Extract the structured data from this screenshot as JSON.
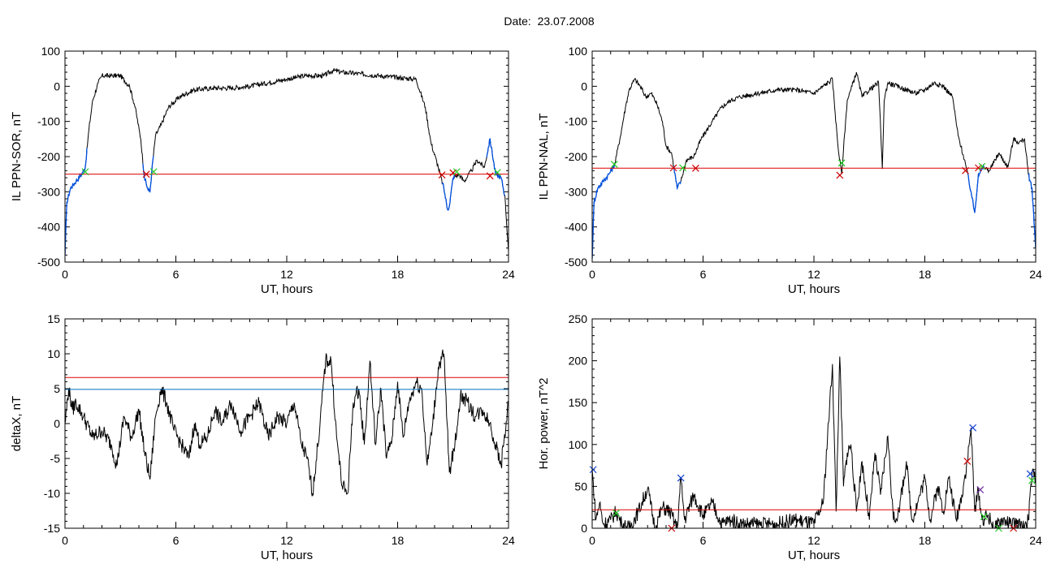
{
  "title": "Date:  23.07.2008",
  "colors": {
    "signal": "#000000",
    "threshold_red": "#dd0000",
    "threshold_blue": "#0070c0",
    "segment_blue": "#0050e0",
    "marker_green": "#22cc22",
    "marker_red": "#cc0000",
    "marker_blue": "#1040d0"
  },
  "chart_data": [
    {
      "id": "il-ppn-sor",
      "type": "line",
      "xlabel": "UT, hours",
      "ylabel": "IL PPN-SOR, nT",
      "xlim": [
        0,
        24
      ],
      "ylim": [
        -500,
        100
      ],
      "xticks": [
        0,
        6,
        12,
        18,
        24
      ],
      "yticks": [
        -500,
        -400,
        -300,
        -200,
        -100,
        0,
        100
      ],
      "threshold": {
        "value": -250,
        "color": "red"
      },
      "series": [
        {
          "values_hours": [
            0,
            0.1,
            0.3,
            0.6,
            0.9,
            1.1,
            1.3,
            1.5,
            1.8,
            2.0,
            2.5,
            3.0,
            3.5,
            3.8,
            4.1,
            4.3,
            4.5,
            4.6,
            4.7,
            4.9,
            5.2,
            5.6,
            6.2,
            7,
            8,
            9,
            10,
            11,
            12,
            13,
            14,
            14.5,
            15,
            16,
            17,
            18,
            19,
            19.5,
            19.8,
            20.2,
            20.5,
            20.7,
            20.8,
            21.0,
            21.3,
            21.6,
            22.0,
            22.3,
            22.7,
            23.0,
            23.3,
            23.6,
            23.8,
            24
          ],
          "values_nT": [
            -480,
            -330,
            -290,
            -270,
            -250,
            -230,
            -120,
            -40,
            10,
            30,
            30,
            30,
            0,
            -60,
            -150,
            -260,
            -295,
            -300,
            -240,
            -140,
            -110,
            -60,
            -30,
            -10,
            -5,
            -5,
            0,
            10,
            20,
            30,
            30,
            45,
            40,
            35,
            30,
            25,
            20,
            -60,
            -160,
            -230,
            -290,
            -350,
            -340,
            -260,
            -250,
            -270,
            -240,
            -210,
            -230,
            -150,
            -250,
            -260,
            -310,
            -470
          ]
        }
      ],
      "segments": [
        [
          0,
          1.2
        ],
        [
          4.2,
          4.8
        ],
        [
          20.4,
          21.1
        ],
        [
          22.8,
          23.8
        ]
      ],
      "markers": [
        {
          "x": 1.1,
          "y": -243,
          "color": "green"
        },
        {
          "x": 4.4,
          "y": -250,
          "color": "red"
        },
        {
          "x": 4.8,
          "y": -243,
          "color": "green"
        },
        {
          "x": 20.4,
          "y": -252,
          "color": "red"
        },
        {
          "x": 21.0,
          "y": -246,
          "color": "red"
        },
        {
          "x": 21.2,
          "y": -243,
          "color": "green"
        },
        {
          "x": 23.0,
          "y": -255,
          "color": "red"
        },
        {
          "x": 23.4,
          "y": -245,
          "color": "green"
        }
      ]
    },
    {
      "id": "il-ppn-nal",
      "type": "line",
      "xlabel": "UT, hours",
      "ylabel": "IL PPN-NAL, nT",
      "xlim": [
        0,
        24
      ],
      "ylim": [
        -500,
        100
      ],
      "xticks": [
        0,
        6,
        12,
        18,
        24
      ],
      "yticks": [
        -500,
        -400,
        -300,
        -200,
        -100,
        0,
        100
      ],
      "threshold": {
        "value": -233,
        "color": "red"
      },
      "series": [
        {
          "values_hours": [
            0,
            0.1,
            0.3,
            0.6,
            0.9,
            1.2,
            1.5,
            1.8,
            2.0,
            2.3,
            2.6,
            2.9,
            3.2,
            3.5,
            3.8,
            4.0,
            4.3,
            4.6,
            4.8,
            5.1,
            5.5,
            5.9,
            6.5,
            7.0,
            7.5,
            8,
            9,
            10,
            11,
            12,
            12.5,
            13.0,
            13.3,
            13.5,
            13.6,
            13.8,
            14.0,
            14.3,
            14.6,
            15.0,
            15.5,
            15.7,
            15.8,
            16.0,
            16.5,
            17,
            17.5,
            18.0,
            18.5,
            19.0,
            19.5,
            19.8,
            20.2,
            20.5,
            20.7,
            20.9,
            21.2,
            21.5,
            22.0,
            22.5,
            22.8,
            23.1,
            23.4,
            23.6,
            23.8,
            24
          ],
          "values_nT": [
            -490,
            -330,
            -290,
            -270,
            -250,
            -225,
            -150,
            -60,
            -10,
            20,
            0,
            -30,
            -20,
            -50,
            -100,
            -170,
            -190,
            -290,
            -270,
            -210,
            -200,
            -150,
            -100,
            -60,
            -40,
            -30,
            -20,
            -10,
            -10,
            -20,
            0,
            20,
            -170,
            -250,
            -180,
            -40,
            -10,
            40,
            -30,
            -10,
            10,
            -235,
            -40,
            10,
            0,
            -10,
            -20,
            -10,
            10,
            0,
            -30,
            -140,
            -220,
            -300,
            -360,
            -250,
            -230,
            -240,
            -190,
            -230,
            -150,
            -160,
            -150,
            -250,
            -290,
            -460
          ]
        }
      ],
      "segments": [
        [
          0,
          1.2
        ],
        [
          4.4,
          4.8
        ],
        [
          20.3,
          21.2
        ],
        [
          23.6,
          24
        ]
      ],
      "markers": [
        {
          "x": 1.2,
          "y": -222,
          "color": "green"
        },
        {
          "x": 4.4,
          "y": -232,
          "color": "red"
        },
        {
          "x": 4.9,
          "y": -232,
          "color": "green"
        },
        {
          "x": 5.6,
          "y": -233,
          "color": "red"
        },
        {
          "x": 13.4,
          "y": -253,
          "color": "red"
        },
        {
          "x": 13.5,
          "y": -218,
          "color": "green"
        },
        {
          "x": 20.2,
          "y": -240,
          "color": "red"
        },
        {
          "x": 20.9,
          "y": -232,
          "color": "red"
        },
        {
          "x": 21.1,
          "y": -228,
          "color": "green"
        }
      ]
    },
    {
      "id": "deltax",
      "type": "line",
      "xlabel": "UT, hours",
      "ylabel": "deltaX, nT",
      "xlim": [
        0,
        24
      ],
      "ylim": [
        -15,
        15
      ],
      "xticks": [
        0,
        6,
        12,
        18,
        24
      ],
      "yticks": [
        -15,
        -10,
        -5,
        0,
        5,
        10,
        15
      ],
      "threshold_lines": [
        {
          "value": 6.6,
          "color": "red"
        },
        {
          "value": 4.9,
          "color": "blue"
        }
      ],
      "series": [
        {
          "values_hours": [
            0,
            0.2,
            0.4,
            0.6,
            1.0,
            1.5,
            2.0,
            2.5,
            2.8,
            3.2,
            3.6,
            4.0,
            4.3,
            4.6,
            4.9,
            5.2,
            5.5,
            5.9,
            6.3,
            6.7,
            7.0,
            7.3,
            7.7,
            8.1,
            8.5,
            9.0,
            9.5,
            10.0,
            10.5,
            11.0,
            11.5,
            12.0,
            12.4,
            12.8,
            13.1,
            13.4,
            13.8,
            14.1,
            14.4,
            14.7,
            15.0,
            15.3,
            15.6,
            15.9,
            16.2,
            16.5,
            16.8,
            17.1,
            17.4,
            17.7,
            18.0,
            18.3,
            18.6,
            19.0,
            19.3,
            19.6,
            19.9,
            20.2,
            20.5,
            20.8,
            21.1,
            21.4,
            21.8,
            22.2,
            22.6,
            23.0,
            23.3,
            23.6,
            24
          ],
          "values_nT": [
            0,
            5,
            2,
            3,
            1,
            -2,
            -1,
            -3,
            -6,
            1,
            -2,
            2,
            -4,
            -8,
            1,
            5,
            3,
            -1,
            -3,
            -5,
            0,
            -3,
            -2,
            2,
            0,
            3,
            -1,
            1,
            3,
            -2,
            1,
            0,
            3,
            -3,
            -5,
            -10,
            0,
            9,
            9,
            -2,
            -9,
            -10,
            3,
            5,
            -3,
            9,
            -3,
            5,
            -5,
            -2,
            6,
            -2,
            3,
            6,
            5,
            -6,
            0,
            8,
            10,
            -7,
            -3,
            4,
            3,
            1,
            2,
            0,
            -3,
            -6,
            3
          ]
        }
      ]
    },
    {
      "id": "hor-power",
      "type": "line",
      "xlabel": "UT, hours",
      "ylabel": "Hor. power, nT^2",
      "xlim": [
        0,
        24
      ],
      "ylim": [
        0,
        250
      ],
      "xticks": [
        0,
        6,
        12,
        18,
        24
      ],
      "yticks": [
        0,
        50,
        100,
        150,
        200,
        250
      ],
      "threshold": {
        "value": 22,
        "color": "red"
      },
      "series": [
        {
          "values_hours": [
            0,
            0.2,
            0.4,
            0.6,
            1.0,
            1.3,
            1.6,
            2.0,
            2.5,
            3.0,
            3.4,
            3.8,
            4.2,
            4.6,
            4.8,
            5.0,
            5.5,
            6.0,
            6.5,
            7.0,
            7.5,
            8,
            9,
            10,
            11,
            12,
            12.5,
            13.0,
            13.2,
            13.4,
            13.6,
            13.8,
            14.0,
            14.3,
            14.6,
            15.0,
            15.3,
            15.6,
            16.0,
            16.3,
            16.6,
            17.0,
            17.3,
            17.6,
            18.0,
            18.3,
            18.7,
            19.0,
            19.3,
            19.7,
            20.0,
            20.3,
            20.5,
            20.7,
            20.9,
            21.1,
            21.4,
            21.8,
            22.2,
            22.6,
            23.0,
            23.3,
            23.6,
            23.8,
            24
          ],
          "values_nT2": [
            70,
            10,
            30,
            5,
            10,
            20,
            5,
            0,
            20,
            48,
            0,
            25,
            20,
            0,
            60,
            10,
            40,
            15,
            30,
            5,
            10,
            5,
            5,
            5,
            10,
            5,
            30,
            196,
            20,
            205,
            50,
            90,
            100,
            20,
            80,
            10,
            90,
            40,
            110,
            10,
            20,
            80,
            10,
            30,
            60,
            10,
            50,
            20,
            60,
            10,
            40,
            80,
            120,
            20,
            45,
            10,
            15,
            0,
            10,
            5,
            5,
            0,
            10,
            65,
            60
          ]
        }
      ],
      "markers": [
        {
          "x": 0.05,
          "y": 70,
          "color": "blue"
        },
        {
          "x": 1.3,
          "y": 18,
          "color": "green"
        },
        {
          "x": 4.3,
          "y": 0,
          "color": "red"
        },
        {
          "x": 4.8,
          "y": 60,
          "color": "blue"
        },
        {
          "x": 20.3,
          "y": 80,
          "color": "red"
        },
        {
          "x": 20.6,
          "y": 120,
          "color": "blue"
        },
        {
          "x": 21.0,
          "y": 46,
          "color": "purple"
        },
        {
          "x": 21.2,
          "y": 14,
          "color": "green"
        },
        {
          "x": 22.0,
          "y": 0,
          "color": "green"
        },
        {
          "x": 22.8,
          "y": 0,
          "color": "red"
        },
        {
          "x": 23.7,
          "y": 65,
          "color": "blue"
        },
        {
          "x": 23.8,
          "y": 57,
          "color": "green"
        }
      ]
    }
  ]
}
